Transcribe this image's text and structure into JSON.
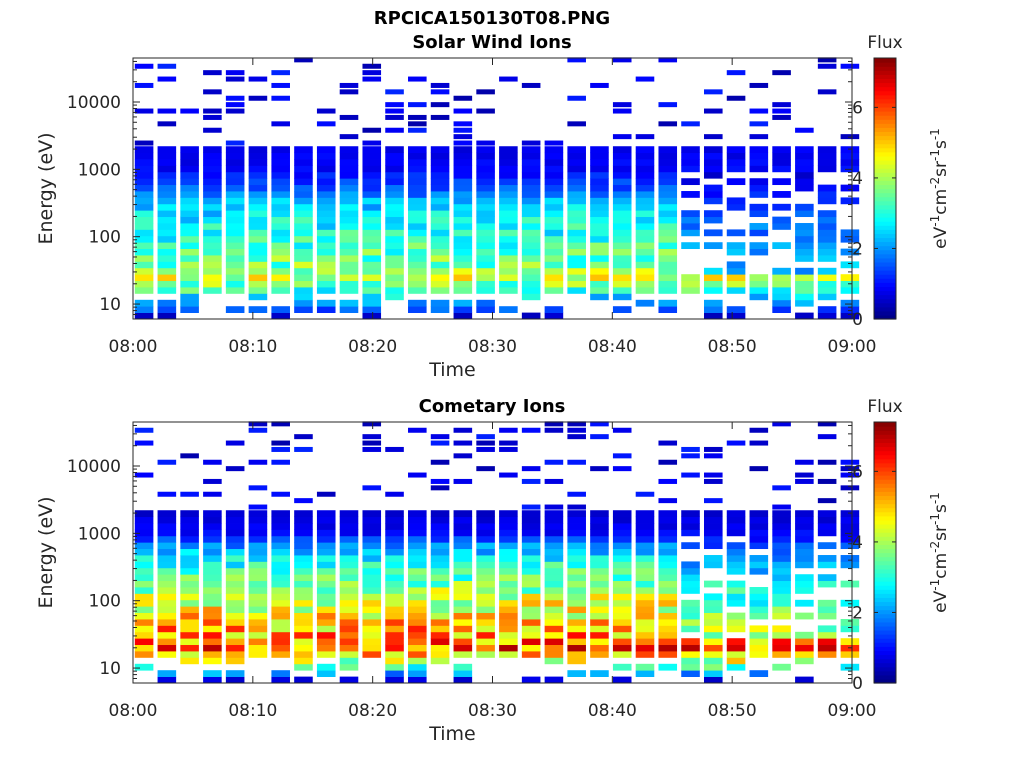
{
  "figure": {
    "file_title": "RPCICA150130T08.PNG"
  },
  "chart_data": [
    {
      "type": "heatmap",
      "title": "Solar Wind Ions",
      "xlabel": "Time",
      "ylabel": "Energy (eV)",
      "x_ticks": [
        "08:00",
        "08:10",
        "08:20",
        "08:30",
        "08:40",
        "08:50",
        "09:00"
      ],
      "xlim": [
        "08:00",
        "09:00"
      ],
      "y_scale": "log",
      "ylim": [
        6,
        45000
      ],
      "y_ticks": [
        10,
        100,
        1000,
        10000
      ],
      "y_tick_labels": [
        "10",
        "100",
        "1000",
        "10000"
      ],
      "colorbar": {
        "label": "eV-1cm-2sr-1s-1",
        "title": "Flux",
        "range": [
          0,
          7.4
        ],
        "ticks": [
          0,
          2,
          4,
          6
        ],
        "colormap": "jet"
      },
      "time_bins_min": 19,
      "profile_log_energy_vs_flux": [
        [
          0.78,
          0
        ],
        [
          0.9,
          1.4
        ],
        [
          1.0,
          1.9
        ],
        [
          1.2,
          3.1
        ],
        [
          1.4,
          4.2
        ],
        [
          1.55,
          3.6
        ],
        [
          1.75,
          3.4
        ],
        [
          2.0,
          3.0
        ],
        [
          2.3,
          2.7
        ],
        [
          2.5,
          2.3
        ],
        [
          2.7,
          1.6
        ],
        [
          3.0,
          0.9
        ],
        [
          3.3,
          0.8
        ],
        [
          3.55,
          0.6
        ],
        [
          3.7,
          0.25
        ],
        [
          4.65,
          0.05
        ]
      ]
    },
    {
      "type": "heatmap",
      "title": "Cometary Ions",
      "xlabel": "Time",
      "ylabel": "Energy (eV)",
      "x_ticks": [
        "08:00",
        "08:10",
        "08:20",
        "08:30",
        "08:40",
        "08:50",
        "09:00"
      ],
      "xlim": [
        "08:00",
        "09:00"
      ],
      "y_scale": "log",
      "ylim": [
        6,
        45000
      ],
      "y_ticks": [
        10,
        100,
        1000,
        10000
      ],
      "y_tick_labels": [
        "10",
        "100",
        "1000",
        "10000"
      ],
      "colorbar": {
        "label": "eV-1cm-2sr-1s-1",
        "title": "Flux",
        "range": [
          0,
          7.4
        ],
        "ticks": [
          0,
          2,
          4,
          6
        ],
        "colormap": "jet"
      },
      "time_bins_min": 19,
      "profile_log_energy_vs_flux": [
        [
          0.78,
          0
        ],
        [
          0.95,
          2.4
        ],
        [
          1.15,
          4.6
        ],
        [
          1.3,
          5.8
        ],
        [
          1.45,
          5.4
        ],
        [
          1.65,
          5.0
        ],
        [
          1.85,
          4.6
        ],
        [
          2.1,
          4.0
        ],
        [
          2.4,
          3.3
        ],
        [
          2.65,
          2.6
        ],
        [
          2.85,
          1.8
        ],
        [
          3.0,
          0.9
        ],
        [
          3.3,
          0.6
        ],
        [
          3.5,
          0.3
        ],
        [
          4.65,
          0.0
        ]
      ]
    }
  ]
}
